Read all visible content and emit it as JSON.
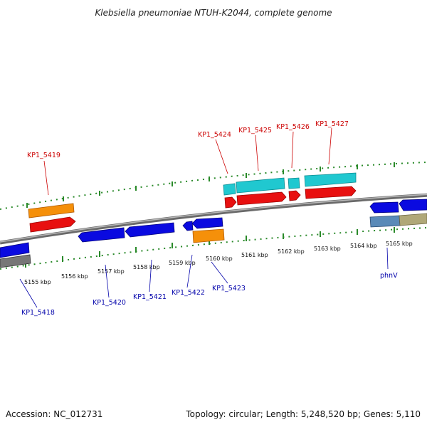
{
  "title": "Klebsiella pneumoniae NTUH-K2044, complete genome",
  "footer": {
    "accession": "Accession: NC_012731",
    "summary": "Topology: circular; Length: 5,248,520 bp; Genes: 5,110"
  },
  "colors": {
    "backbone": "#8a8a8a",
    "tick": "#2a8a2a",
    "label_top": "#cc0000",
    "label_bottom": "#0000aa",
    "gene_red": "#e81010",
    "gene_blue": "#0a0ae0",
    "gene_cyan": "#20c8d0",
    "gene_orange": "#f5900a",
    "gene_gray": "#777777",
    "gene_steel": "#5a8ab8",
    "gene_olive": "#b0a878"
  },
  "ticks": [
    "5155 kbp",
    "5156 kbp",
    "5157 kbp",
    "5158 kbp",
    "5159 kbp",
    "5160 kbp",
    "5161 kbp",
    "5162 kbp",
    "5163 kbp",
    "5164 kbp",
    "5165 kbp"
  ],
  "top_labels": [
    "KP1_5419",
    "KP1_5424",
    "KP1_5425",
    "KP1_5426",
    "KP1_5427"
  ],
  "bottom_labels": [
    "KP1_5418",
    "KP1_5420",
    "KP1_5421",
    "KP1_5422",
    "KP1_5423",
    "phnV"
  ]
}
